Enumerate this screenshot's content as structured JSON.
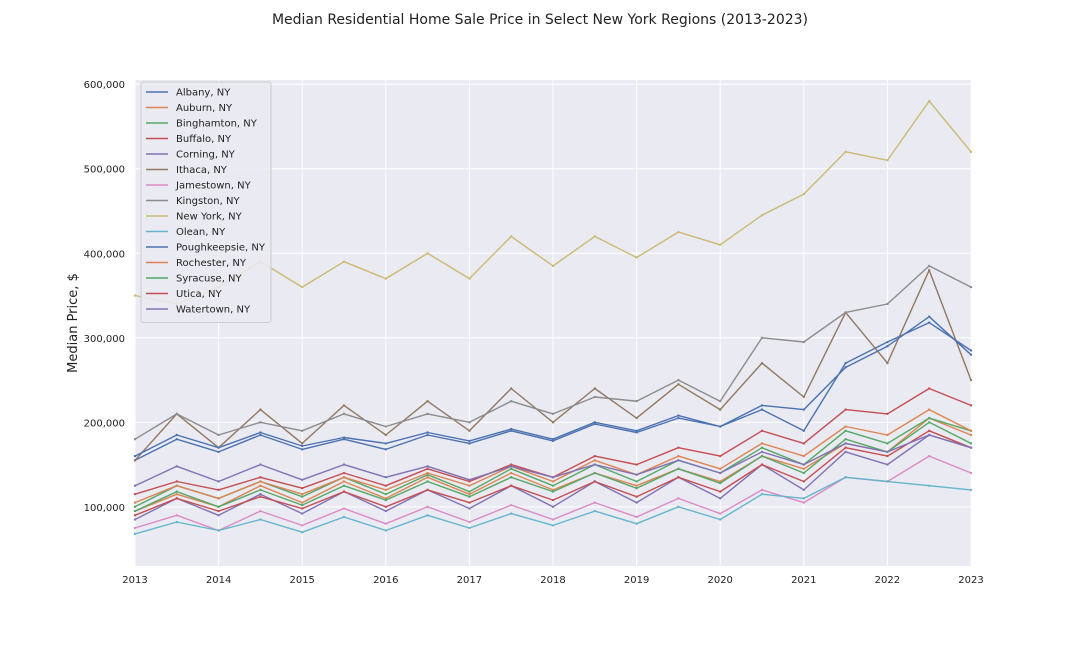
{
  "chart_data": {
    "type": "line",
    "title": "Median Residential Home Sale Price in Select New York Regions (2013-2023)",
    "xlabel": "",
    "ylabel": "Median Price, $",
    "xlim": [
      2013,
      2023
    ],
    "ylim": [
      30000,
      605000
    ],
    "x_ticks": [
      "2013",
      "2014",
      "2015",
      "2016",
      "2017",
      "2018",
      "2019",
      "2020",
      "2021",
      "2022",
      "2023"
    ],
    "y_ticks": [
      "100,000",
      "200,000",
      "300,000",
      "400,000",
      "500,000",
      "600,000"
    ],
    "grid": true,
    "legend_position": "top-left",
    "x": [
      2013.0,
      2013.5,
      2014.0,
      2014.5,
      2015.0,
      2015.5,
      2016.0,
      2016.5,
      2017.0,
      2017.5,
      2018.0,
      2018.5,
      2019.0,
      2019.5,
      2020.0,
      2020.5,
      2021.0,
      2021.5,
      2022.0,
      2022.5,
      2023.0
    ],
    "series": [
      {
        "name": "Albany, NY",
        "color": "#4c72b0",
        "values": [
          155000,
          180000,
          165000,
          185000,
          168000,
          180000,
          168000,
          185000,
          175000,
          190000,
          178000,
          198000,
          188000,
          205000,
          195000,
          215000,
          190000,
          270000,
          295000,
          318000,
          285000
        ]
      },
      {
        "name": "Auburn, NY",
        "color": "#dd8452",
        "values": [
          95000,
          115000,
          100000,
          125000,
          105000,
          130000,
          110000,
          135000,
          115000,
          140000,
          120000,
          140000,
          125000,
          145000,
          130000,
          160000,
          145000,
          175000,
          165000,
          205000,
          185000
        ]
      },
      {
        "name": "Binghamton, NY",
        "color": "#55a868",
        "values": [
          100000,
          125000,
          110000,
          130000,
          112000,
          135000,
          115000,
          138000,
          118000,
          145000,
          125000,
          150000,
          130000,
          155000,
          140000,
          170000,
          150000,
          190000,
          175000,
          205000,
          190000
        ]
      },
      {
        "name": "Buffalo, NY",
        "color": "#c44e52",
        "values": [
          115000,
          130000,
          120000,
          135000,
          122000,
          140000,
          125000,
          145000,
          130000,
          150000,
          135000,
          160000,
          150000,
          170000,
          160000,
          190000,
          175000,
          215000,
          210000,
          240000,
          220000
        ]
      },
      {
        "name": "Corning, NY",
        "color": "#8172b3",
        "values": [
          85000,
          110000,
          90000,
          115000,
          92000,
          118000,
          95000,
          120000,
          98000,
          125000,
          100000,
          130000,
          105000,
          135000,
          110000,
          150000,
          120000,
          165000,
          150000,
          185000,
          170000
        ]
      },
      {
        "name": "Ithaca, NY",
        "color": "#937860",
        "values": [
          155000,
          210000,
          170000,
          215000,
          175000,
          220000,
          185000,
          225000,
          190000,
          240000,
          200000,
          240000,
          205000,
          245000,
          215000,
          270000,
          230000,
          330000,
          270000,
          380000,
          250000
        ]
      },
      {
        "name": "Jamestown, NY",
        "color": "#da8bc3",
        "values": [
          75000,
          90000,
          72000,
          95000,
          78000,
          98000,
          80000,
          100000,
          82000,
          102000,
          85000,
          105000,
          88000,
          110000,
          92000,
          120000,
          105000,
          135000,
          130000,
          160000,
          140000
        ]
      },
      {
        "name": "Kingston, NY",
        "color": "#8c8c8c",
        "values": [
          180000,
          210000,
          185000,
          200000,
          190000,
          210000,
          195000,
          210000,
          200000,
          225000,
          210000,
          230000,
          225000,
          250000,
          225000,
          300000,
          295000,
          330000,
          340000,
          385000,
          360000
        ]
      },
      {
        "name": "New York, NY",
        "color": "#ccb974",
        "values": [
          350000,
          340000,
          360000,
          390000,
          360000,
          390000,
          370000,
          400000,
          370000,
          420000,
          385000,
          420000,
          395000,
          425000,
          410000,
          445000,
          470000,
          520000,
          510000,
          580000,
          520000
        ]
      },
      {
        "name": "Olean, NY",
        "color": "#64b5cd",
        "values": [
          68000,
          82000,
          72000,
          85000,
          70000,
          88000,
          72000,
          90000,
          75000,
          92000,
          78000,
          95000,
          80000,
          100000,
          85000,
          115000,
          110000,
          135000,
          130000,
          125000,
          120000
        ]
      },
      {
        "name": "Poughkeepsie, NY",
        "color": "#4c72b0",
        "values": [
          160000,
          185000,
          170000,
          188000,
          172000,
          182000,
          175000,
          188000,
          178000,
          192000,
          180000,
          200000,
          190000,
          208000,
          195000,
          220000,
          215000,
          265000,
          290000,
          325000,
          280000
        ]
      },
      {
        "name": "Rochester, NY",
        "color": "#dd8452",
        "values": [
          105000,
          125000,
          110000,
          130000,
          115000,
          135000,
          120000,
          140000,
          125000,
          148000,
          130000,
          155000,
          138000,
          160000,
          145000,
          175000,
          160000,
          195000,
          185000,
          215000,
          190000
        ]
      },
      {
        "name": "Syracuse, NY",
        "color": "#55a868",
        "values": [
          95000,
          118000,
          100000,
          120000,
          102000,
          125000,
          108000,
          130000,
          112000,
          135000,
          118000,
          140000,
          122000,
          145000,
          128000,
          160000,
          140000,
          180000,
          165000,
          200000,
          175000
        ]
      },
      {
        "name": "Utica, NY",
        "color": "#c44e52",
        "values": [
          90000,
          110000,
          95000,
          112000,
          98000,
          118000,
          100000,
          120000,
          105000,
          125000,
          108000,
          130000,
          112000,
          135000,
          118000,
          150000,
          130000,
          170000,
          160000,
          190000,
          170000
        ]
      },
      {
        "name": "Watertown, NY",
        "color": "#8172b3",
        "values": [
          125000,
          148000,
          130000,
          150000,
          132000,
          150000,
          135000,
          148000,
          132000,
          148000,
          135000,
          150000,
          138000,
          155000,
          140000,
          165000,
          150000,
          175000,
          165000,
          185000,
          170000
        ]
      }
    ]
  }
}
